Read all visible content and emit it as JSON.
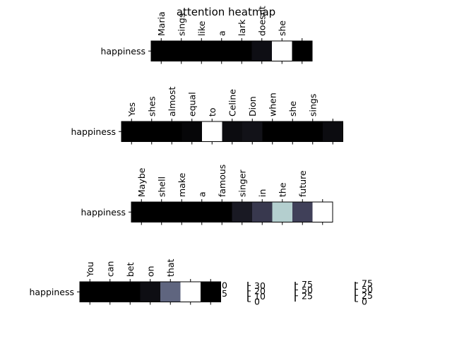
{
  "chart_data": [
    {
      "type": "heatmap",
      "title": "attention heatmap",
      "row_label": "happiness",
      "tokens": [
        "Maria",
        "sings",
        "like",
        "a",
        "lark",
        "doesnt",
        "she",
        ""
      ],
      "values": [
        0,
        0,
        0,
        0,
        0,
        4,
        61,
        0
      ],
      "vmax": 61,
      "colorbar_ticks": [
        25,
        50
      ]
    },
    {
      "type": "heatmap",
      "row_label": "happiness",
      "tokens": [
        "Yes",
        "shes",
        "almost",
        "equal",
        "to",
        "Celine",
        "Dion",
        "when",
        "she",
        "sings",
        ""
      ],
      "values": [
        0,
        0,
        0,
        1,
        37,
        2,
        3,
        0,
        0,
        0,
        2
      ],
      "vmax": 37,
      "colorbar_ticks": [
        0,
        10,
        20,
        30
      ]
    },
    {
      "type": "heatmap",
      "row_label": "happiness",
      "tokens": [
        "Maybe",
        "shell",
        "make",
        "a",
        "famous",
        "singer",
        "in",
        "the",
        "future",
        ""
      ],
      "values": [
        0,
        0,
        0,
        0,
        0,
        10,
        22,
        67,
        25,
        85
      ],
      "vmax": 85,
      "colorbar_ticks": [
        25,
        50,
        75
      ]
    },
    {
      "type": "heatmap",
      "row_label": "happiness",
      "tokens": [
        "You",
        "can",
        "bet",
        "on",
        "that",
        "",
        ""
      ],
      "values": [
        0,
        0,
        0,
        5,
        35,
        80,
        0
      ],
      "vmax": 80,
      "colorbar_ticks": [
        0,
        25,
        50,
        75
      ]
    }
  ]
}
